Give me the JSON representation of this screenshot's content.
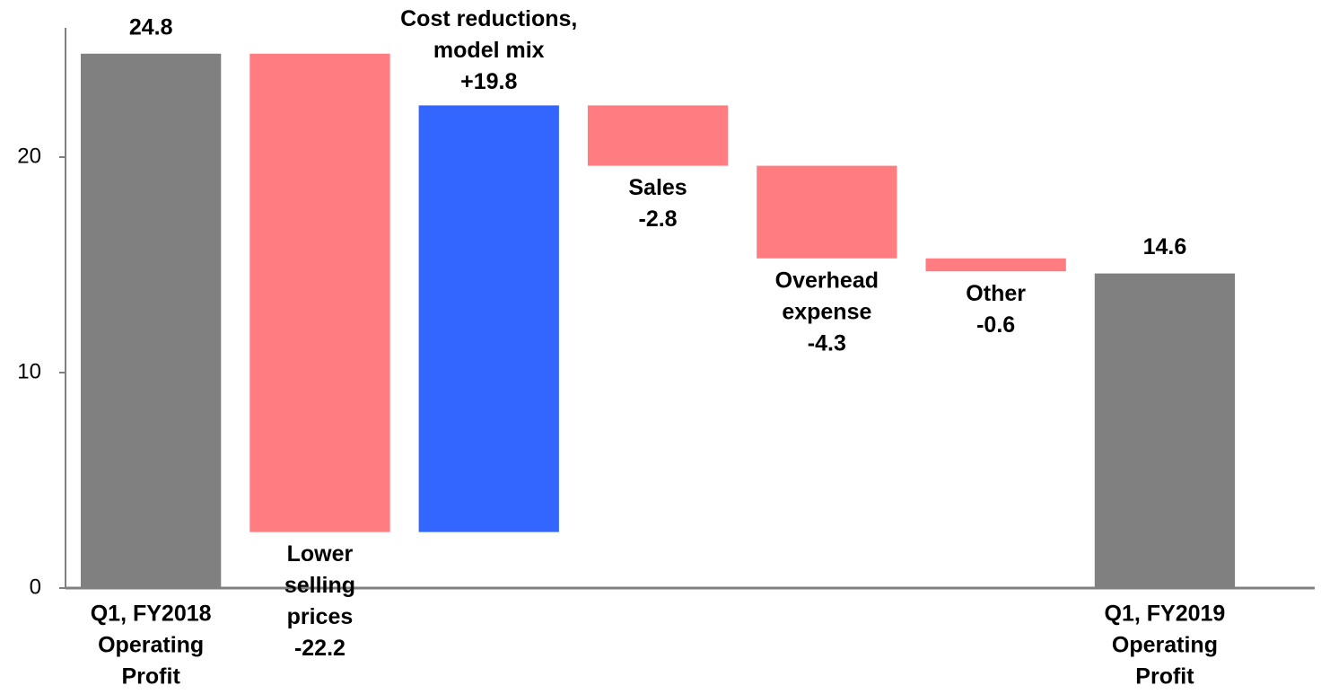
{
  "chart_data": {
    "type": "waterfall",
    "categories": [
      [
        "Q1, FY2018",
        "Operating",
        "Profit"
      ],
      [
        "Lower",
        "selling",
        "prices"
      ],
      [
        "Cost reductions,",
        "model mix"
      ],
      [
        "Sales"
      ],
      [
        "Overhead",
        "expense"
      ],
      [
        "Other"
      ],
      [
        "Q1, FY2019",
        "Operating",
        "Profit"
      ]
    ],
    "measure": [
      "absolute",
      "relative",
      "relative",
      "relative",
      "relative",
      "relative",
      "absolute"
    ],
    "values": [
      24.8,
      -22.2,
      19.8,
      -2.8,
      -4.3,
      -0.6,
      14.6
    ],
    "value_labels": [
      "24.8",
      "-22.2",
      "+19.8",
      "-2.8",
      "-4.3",
      "-0.6",
      "14.6"
    ],
    "colors": {
      "absolute": "#808080",
      "increase": "#3366ff",
      "decrease": "#ff7c80"
    },
    "ylim": [
      0,
      26
    ],
    "yticks": [
      0,
      10,
      20
    ]
  }
}
